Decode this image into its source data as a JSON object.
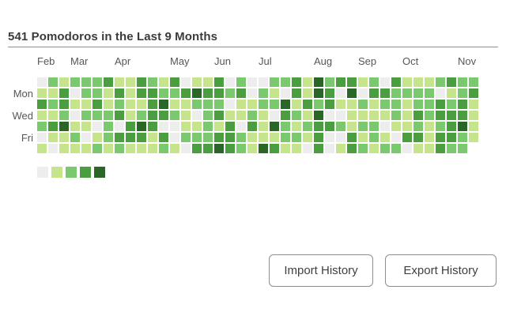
{
  "title": "541 Pomodoros in the Last 9 Months",
  "buttons": {
    "import_label": "Import History",
    "export_label": "Export History"
  },
  "chart_data": {
    "type": "heatmap",
    "title": "541 Pomodoros in the Last 9 Months",
    "description_visible": "GitHub-style weekly activity heatmap, 40 week columns x 7 day rows, levels 0-4",
    "palette": [
      "#ededed",
      "#c6e48b",
      "#7bc96f",
      "#4a9e3f",
      "#2a6627"
    ],
    "legend_levels": [
      0,
      1,
      2,
      3,
      4
    ],
    "months": [
      {
        "label": "Feb",
        "col": 0
      },
      {
        "label": "Mar",
        "col": 3
      },
      {
        "label": "Apr",
        "col": 7
      },
      {
        "label": "May",
        "col": 12
      },
      {
        "label": "Jun",
        "col": 16
      },
      {
        "label": "Jul",
        "col": 20
      },
      {
        "label": "Aug",
        "col": 25
      },
      {
        "label": "Sep",
        "col": 29
      },
      {
        "label": "Oct",
        "col": 33
      },
      {
        "label": "Nov",
        "col": 38
      }
    ],
    "day_labels": [
      {
        "label": "Mon",
        "row": 1
      },
      {
        "label": "Wed",
        "row": 3
      },
      {
        "label": "Fri",
        "row": 5
      }
    ],
    "values": [
      [
        0,
        2,
        1,
        2,
        2,
        2,
        3,
        1,
        1,
        3,
        2,
        1,
        3,
        0,
        1,
        1,
        3,
        0,
        2,
        0,
        0,
        2,
        2,
        3,
        1,
        4,
        2,
        3,
        3,
        1,
        2,
        0,
        3,
        1,
        1,
        1,
        2,
        3,
        2,
        2
      ],
      [
        1,
        1,
        3,
        0,
        2,
        2,
        1,
        3,
        1,
        3,
        3,
        2,
        2,
        3,
        4,
        3,
        3,
        2,
        3,
        0,
        2,
        1,
        0,
        3,
        1,
        4,
        3,
        0,
        4,
        0,
        3,
        3,
        2,
        2,
        2,
        2,
        0,
        1,
        2,
        3
      ],
      [
        3,
        2,
        3,
        1,
        1,
        3,
        1,
        2,
        1,
        1,
        3,
        4,
        1,
        1,
        2,
        2,
        2,
        0,
        1,
        1,
        2,
        2,
        4,
        1,
        3,
        2,
        3,
        1,
        1,
        2,
        1,
        2,
        2,
        1,
        2,
        2,
        3,
        2,
        3,
        1
      ],
      [
        1,
        1,
        2,
        0,
        2,
        2,
        2,
        3,
        1,
        2,
        3,
        3,
        2,
        1,
        0,
        2,
        3,
        1,
        1,
        2,
        1,
        0,
        3,
        2,
        1,
        4,
        0,
        0,
        1,
        1,
        1,
        1,
        2,
        1,
        3,
        2,
        3,
        3,
        3,
        1
      ],
      [
        2,
        3,
        4,
        1,
        1,
        0,
        2,
        0,
        3,
        4,
        3,
        0,
        0,
        1,
        1,
        2,
        1,
        3,
        0,
        3,
        1,
        4,
        2,
        1,
        2,
        3,
        3,
        2,
        1,
        2,
        2,
        0,
        1,
        1,
        2,
        1,
        2,
        3,
        4,
        1
      ],
      [
        0,
        1,
        1,
        2,
        0,
        1,
        2,
        3,
        3,
        3,
        1,
        3,
        0,
        2,
        2,
        2,
        3,
        3,
        2,
        1,
        1,
        1,
        2,
        2,
        1,
        3,
        0,
        0,
        3,
        1,
        2,
        1,
        0,
        3,
        3,
        1,
        3,
        3,
        2,
        1
      ],
      [
        1,
        0,
        1,
        1,
        1,
        2,
        1,
        2,
        1,
        1,
        1,
        2,
        1,
        0,
        3,
        3,
        4,
        3,
        2,
        1,
        4,
        3,
        1,
        1,
        0,
        3,
        0,
        1,
        3,
        2,
        1,
        2,
        2,
        0,
        1,
        1,
        3,
        2,
        2,
        -1
      ]
    ]
  }
}
